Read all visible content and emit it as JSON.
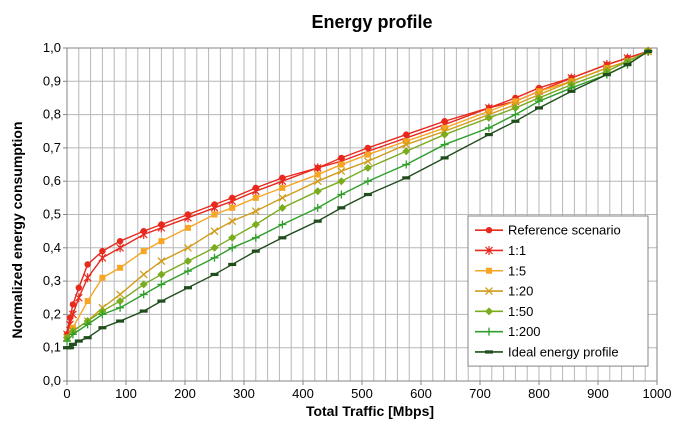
{
  "chart_data": {
    "type": "line",
    "title": "Energy profile",
    "xlabel": "Total Traffic [Mbps]",
    "ylabel": "Normalized energy consumption",
    "xlim": [
      0,
      1000
    ],
    "ylim": [
      0,
      1
    ],
    "xticks": [
      0,
      100,
      200,
      300,
      400,
      500,
      600,
      700,
      800,
      900,
      1000
    ],
    "xtick_labels": [
      "0",
      "100",
      "200",
      "300",
      "400",
      "500",
      "600",
      "700",
      "800",
      "900",
      "1000"
    ],
    "yticks": [
      0,
      0.1,
      0.2,
      0.3,
      0.4,
      0.5,
      0.6,
      0.7,
      0.8,
      0.9,
      1.0
    ],
    "ytick_labels": [
      "0,0",
      "0,1",
      "0,2",
      "0,3",
      "0,4",
      "0,5",
      "0,6",
      "0,7",
      "0,8",
      "0,9",
      "1,0"
    ],
    "grid": true,
    "legend_position": "bottom-right",
    "series": [
      {
        "name": "Reference scenario",
        "color": "#e8291d",
        "marker": "circle",
        "x": [
          0,
          5,
          10,
          20,
          35,
          60,
          90,
          130,
          160,
          205,
          250,
          280,
          320,
          365,
          425,
          465,
          510,
          575,
          640,
          715,
          760,
          800,
          855,
          915,
          950,
          985
        ],
        "y": [
          0.14,
          0.19,
          0.23,
          0.28,
          0.35,
          0.39,
          0.42,
          0.45,
          0.47,
          0.5,
          0.53,
          0.55,
          0.58,
          0.61,
          0.64,
          0.67,
          0.7,
          0.74,
          0.78,
          0.82,
          0.85,
          0.88,
          0.91,
          0.95,
          0.97,
          0.99
        ]
      },
      {
        "name": "1:1",
        "color": "#e8291d",
        "marker": "star",
        "x": [
          0,
          5,
          10,
          20,
          35,
          60,
          90,
          130,
          160,
          205,
          250,
          280,
          320,
          365,
          425,
          465,
          510,
          575,
          640,
          715,
          760,
          800,
          855,
          915,
          950,
          985
        ],
        "y": [
          0.14,
          0.17,
          0.2,
          0.25,
          0.31,
          0.37,
          0.4,
          0.44,
          0.46,
          0.49,
          0.52,
          0.54,
          0.57,
          0.6,
          0.64,
          0.66,
          0.69,
          0.73,
          0.77,
          0.82,
          0.84,
          0.87,
          0.91,
          0.95,
          0.97,
          0.99
        ]
      },
      {
        "name": "1:5",
        "color": "#f6a623",
        "marker": "square",
        "x": [
          0,
          10,
          35,
          60,
          90,
          130,
          160,
          205,
          250,
          280,
          320,
          365,
          425,
          465,
          510,
          575,
          640,
          715,
          760,
          800,
          855,
          915,
          950,
          985
        ],
        "y": [
          0.13,
          0.16,
          0.24,
          0.31,
          0.34,
          0.39,
          0.42,
          0.46,
          0.5,
          0.52,
          0.55,
          0.58,
          0.62,
          0.65,
          0.68,
          0.72,
          0.76,
          0.81,
          0.84,
          0.87,
          0.9,
          0.94,
          0.96,
          0.99
        ]
      },
      {
        "name": "1:20",
        "color": "#d19c1a",
        "marker": "x",
        "x": [
          0,
          10,
          35,
          60,
          90,
          130,
          160,
          205,
          250,
          280,
          320,
          365,
          425,
          465,
          510,
          575,
          640,
          715,
          760,
          800,
          855,
          915,
          950,
          985
        ],
        "y": [
          0.13,
          0.15,
          0.18,
          0.22,
          0.26,
          0.32,
          0.36,
          0.4,
          0.45,
          0.48,
          0.51,
          0.55,
          0.6,
          0.63,
          0.66,
          0.71,
          0.75,
          0.8,
          0.83,
          0.86,
          0.9,
          0.94,
          0.96,
          0.99
        ]
      },
      {
        "name": "1:50",
        "color": "#7aac1e",
        "marker": "diamond",
        "x": [
          0,
          10,
          35,
          60,
          90,
          130,
          160,
          205,
          250,
          280,
          320,
          365,
          425,
          465,
          510,
          575,
          640,
          715,
          760,
          800,
          855,
          915,
          950,
          985
        ],
        "y": [
          0.13,
          0.15,
          0.18,
          0.21,
          0.24,
          0.29,
          0.32,
          0.36,
          0.4,
          0.43,
          0.47,
          0.52,
          0.57,
          0.6,
          0.64,
          0.69,
          0.74,
          0.79,
          0.82,
          0.85,
          0.89,
          0.93,
          0.96,
          0.99
        ]
      },
      {
        "name": "1:200",
        "color": "#2f9e2a",
        "marker": "plus",
        "x": [
          0,
          10,
          35,
          60,
          90,
          130,
          160,
          205,
          250,
          280,
          320,
          365,
          425,
          465,
          510,
          575,
          640,
          715,
          760,
          800,
          855,
          915,
          950,
          985
        ],
        "y": [
          0.12,
          0.14,
          0.17,
          0.2,
          0.22,
          0.26,
          0.29,
          0.33,
          0.37,
          0.4,
          0.43,
          0.47,
          0.52,
          0.56,
          0.6,
          0.65,
          0.71,
          0.76,
          0.8,
          0.84,
          0.88,
          0.92,
          0.95,
          0.99
        ]
      },
      {
        "name": "Ideal energy profile",
        "color": "#1f4e1c",
        "marker": "dash",
        "x": [
          0,
          5,
          10,
          20,
          35,
          60,
          90,
          130,
          160,
          205,
          250,
          280,
          320,
          365,
          425,
          465,
          510,
          575,
          640,
          715,
          760,
          800,
          855,
          915,
          950,
          985
        ],
        "y": [
          0.1,
          0.1,
          0.11,
          0.12,
          0.13,
          0.16,
          0.18,
          0.21,
          0.24,
          0.28,
          0.32,
          0.35,
          0.39,
          0.43,
          0.48,
          0.52,
          0.56,
          0.61,
          0.67,
          0.74,
          0.78,
          0.82,
          0.87,
          0.92,
          0.95,
          0.99
        ]
      }
    ]
  }
}
